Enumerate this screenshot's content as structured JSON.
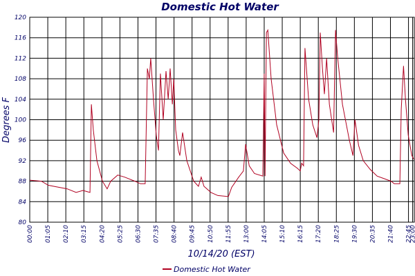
{
  "chart_data": {
    "type": "line",
    "title": "Domestic Hot Water",
    "y_label": "Degrees F",
    "x_label": "10/14/20 (EST)",
    "xlim": [
      0,
      1386
    ],
    "ylim": [
      80,
      120
    ],
    "yticks": [
      80,
      84,
      88,
      92,
      96,
      100,
      104,
      108,
      112,
      116,
      120
    ],
    "xticks": [
      {
        "value": 0,
        "label": "00:00"
      },
      {
        "value": 65,
        "label": "01:05"
      },
      {
        "value": 130,
        "label": "02:10"
      },
      {
        "value": 195,
        "label": "03:15"
      },
      {
        "value": 260,
        "label": "04:20"
      },
      {
        "value": 325,
        "label": "05:25"
      },
      {
        "value": 390,
        "label": "06:30"
      },
      {
        "value": 455,
        "label": "07:35"
      },
      {
        "value": 520,
        "label": "08:40"
      },
      {
        "value": 585,
        "label": "09:45"
      },
      {
        "value": 650,
        "label": "10:50"
      },
      {
        "value": 715,
        "label": "11:55"
      },
      {
        "value": 780,
        "label": "13:00"
      },
      {
        "value": 845,
        "label": "14:05"
      },
      {
        "value": 910,
        "label": "15:10"
      },
      {
        "value": 975,
        "label": "16:15"
      },
      {
        "value": 1040,
        "label": "17:20"
      },
      {
        "value": 1105,
        "label": "18:25"
      },
      {
        "value": 1170,
        "label": "19:30"
      },
      {
        "value": 1235,
        "label": "20:35"
      },
      {
        "value": 1300,
        "label": "21:40"
      },
      {
        "value": 1365,
        "label": "22:45"
      },
      {
        "value": 1380,
        "label": "23:00"
      }
    ],
    "grid": true,
    "legend": "bottom",
    "x": [
      0,
      42,
      67,
      135,
      167,
      192,
      217,
      222,
      229,
      242,
      262,
      279,
      292,
      317,
      342,
      379,
      399,
      416,
      424,
      431,
      436,
      446,
      456,
      464,
      471,
      481,
      491,
      499,
      506,
      514,
      519,
      526,
      536,
      541,
      551,
      566,
      591,
      608,
      618,
      628,
      653,
      678,
      716,
      728,
      753,
      770,
      778,
      791,
      810,
      840,
      845,
      848,
      853,
      858,
      870,
      890,
      915,
      940,
      965,
      975,
      980,
      987,
      992,
      1005,
      1020,
      1035,
      1042,
      1047,
      1055,
      1062,
      1070,
      1080,
      1095,
      1102,
      1110,
      1127,
      1152,
      1165,
      1172,
      1185,
      1202,
      1227,
      1252,
      1277,
      1302,
      1314,
      1334,
      1339,
      1347,
      1354,
      1364,
      1377,
      1384
    ],
    "series": [
      {
        "name": "Domestic Hot Water",
        "color": "#b00020",
        "values": [
          88.2,
          88,
          87.2,
          86.5,
          85.8,
          86.2,
          85.8,
          103,
          98,
          92,
          88,
          86.5,
          88,
          89.2,
          88.8,
          88,
          87.5,
          87.5,
          110,
          108,
          112,
          104,
          97,
          94,
          109,
          100,
          109.5,
          104,
          110,
          103,
          108,
          98,
          94,
          93,
          97.5,
          92,
          88,
          87,
          88.8,
          87,
          85.8,
          85.2,
          85,
          86.8,
          88.8,
          90,
          95.2,
          91,
          89.5,
          89,
          109,
          89,
          117,
          117.5,
          108,
          99,
          93.5,
          91.5,
          90.5,
          90,
          91.5,
          91,
          114,
          104,
          99,
          96.5,
          100,
          117,
          110,
          105,
          112,
          103,
          97.5,
          117.5,
          112,
          103,
          96,
          93,
          100,
          95,
          92,
          90.3,
          89,
          88.5,
          88,
          87.5,
          87.5,
          102,
          110.5,
          104,
          97,
          93,
          92.3
        ]
      }
    ]
  }
}
